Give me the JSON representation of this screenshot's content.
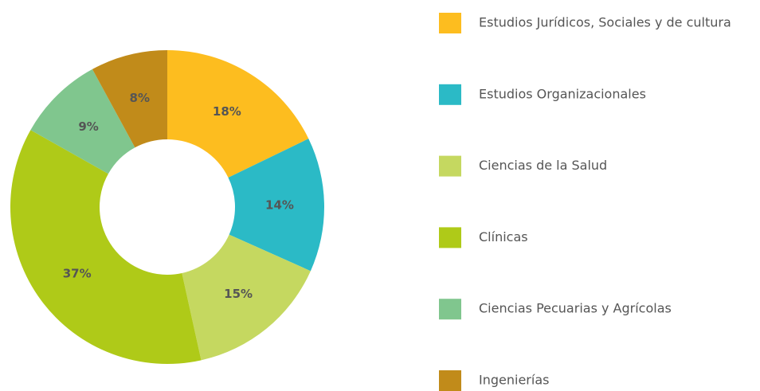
{
  "chart_data": {
    "type": "donut",
    "categories": [
      "Estudios Jurídicos, Sociales y de cultura",
      "Estudios Organizacionales",
      "Ciencias de la Salud",
      "Clínicas",
      "Ciencias Pecuarias y Agrícolas",
      "Ingenierías"
    ],
    "values": [
      18,
      14,
      15,
      37,
      9,
      8
    ],
    "value_labels": [
      "18%",
      "14%",
      "15%",
      "37%",
      "9%",
      "8%"
    ],
    "colors": [
      "#fdbd1f",
      "#2bbac6",
      "#c5d860",
      "#afca18",
      "#80c68e",
      "#c18b1a"
    ]
  }
}
